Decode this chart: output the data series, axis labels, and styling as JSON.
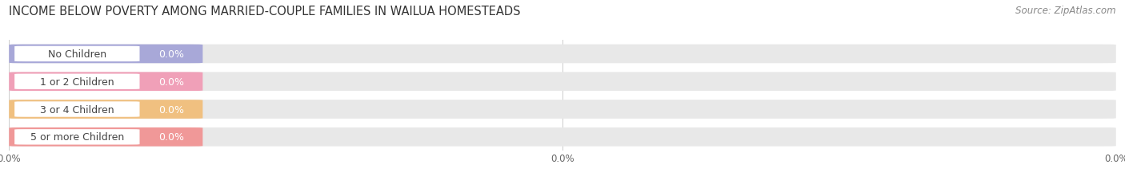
{
  "title": "INCOME BELOW POVERTY AMONG MARRIED-COUPLE FAMILIES IN WAILUA HOMESTEADS",
  "source": "Source: ZipAtlas.com",
  "categories": [
    "No Children",
    "1 or 2 Children",
    "3 or 4 Children",
    "5 or more Children"
  ],
  "values": [
    0.0,
    0.0,
    0.0,
    0.0
  ],
  "bar_colors": [
    "#a8a8d8",
    "#f0a0b8",
    "#f0c080",
    "#f09898"
  ],
  "title_fontsize": 10.5,
  "source_fontsize": 8.5,
  "tick_fontsize": 8.5,
  "bar_label_fontsize": 9,
  "category_fontsize": 9,
  "background_color": "#ffffff",
  "bar_bg_color": "#e8e8e8",
  "grid_color": "#cccccc"
}
